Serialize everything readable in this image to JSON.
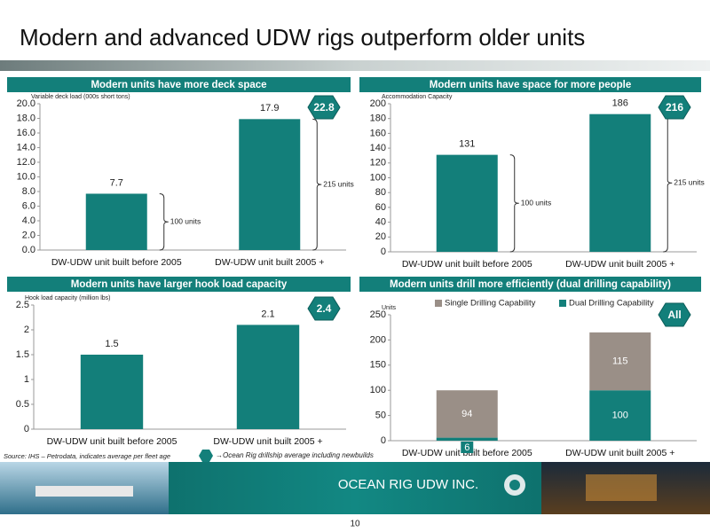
{
  "title": "Modern and advanced UDW rigs outperform older units",
  "source": "Source: IHS – Petrodata, indicates average per fleet age",
  "footnote": "→Ocean Rig drillship  average including newbuilds",
  "company": "OCEAN RIG UDW INC.",
  "page_number": "10",
  "chart_data": [
    {
      "type": "bar",
      "title": "Modern units have more deck space",
      "y_label": "Variable deck load (000s short tons)",
      "categories": [
        "DW-UDW unit built before 2005",
        "DW-UDW unit built 2005 +"
      ],
      "values": [
        7.7,
        17.9
      ],
      "color": "#137f7a",
      "ylim": [
        0,
        20
      ],
      "yticks": [
        {
          "value": 0,
          "label": "0.0"
        },
        {
          "value": 2,
          "label": "2.0"
        },
        {
          "value": 4,
          "label": "4.0"
        },
        {
          "value": 6,
          "label": "6.0"
        },
        {
          "value": 8,
          "label": "8.0"
        },
        {
          "value": 10,
          "label": "10.0"
        },
        {
          "value": 12,
          "label": "12.0"
        },
        {
          "value": 14,
          "label": "14.0"
        },
        {
          "value": 16,
          "label": "16.0"
        },
        {
          "value": 18,
          "label": "18.0"
        },
        {
          "value": 20,
          "label": "20.0"
        }
      ],
      "annotations": [
        "100 units",
        "215 units"
      ],
      "badge": "22.8"
    },
    {
      "type": "bar",
      "title": "Modern units have space for more people",
      "y_label": "Accommodation Capacity",
      "categories": [
        "DW-UDW unit built before 2005",
        "DW-UDW unit built 2005 +"
      ],
      "values": [
        131,
        186
      ],
      "color": "#137f7a",
      "ylim": [
        0,
        200
      ],
      "yticks": [
        0,
        20,
        40,
        60,
        80,
        100,
        120,
        140,
        160,
        180,
        200
      ],
      "annotations": [
        "100 units",
        "215 units"
      ],
      "badge": "216"
    },
    {
      "type": "bar",
      "title": "Modern units have larger hook load capacity",
      "y_label": "Hook load capacity (million lbs)",
      "categories": [
        "DW-UDW unit built before 2005",
        "DW-UDW unit built 2005 +"
      ],
      "values": [
        1.5,
        2.1
      ],
      "color": "#137f7a",
      "ylim": [
        0,
        2.5
      ],
      "yticks": [
        0,
        0.5,
        1,
        1.5,
        2,
        2.5
      ],
      "badge": "2.4"
    },
    {
      "type": "stacked_bar",
      "title": "Modern units drill more efficiently (dual drilling capability)",
      "y_label": "Units",
      "categories": [
        "DW-UDW unit built before 2005",
        "DW-UDW unit built 2005 +"
      ],
      "series": [
        {
          "name": "Dual Drilling Capability",
          "color": "#137f7a",
          "values": [
            6,
            100
          ]
        },
        {
          "name": "Single Drilling Capability",
          "color": "#9a8f87",
          "values": [
            94,
            115
          ]
        }
      ],
      "ylim": [
        0,
        250
      ],
      "yticks": [
        0,
        50,
        100,
        150,
        200,
        250
      ],
      "badge": "All"
    }
  ]
}
